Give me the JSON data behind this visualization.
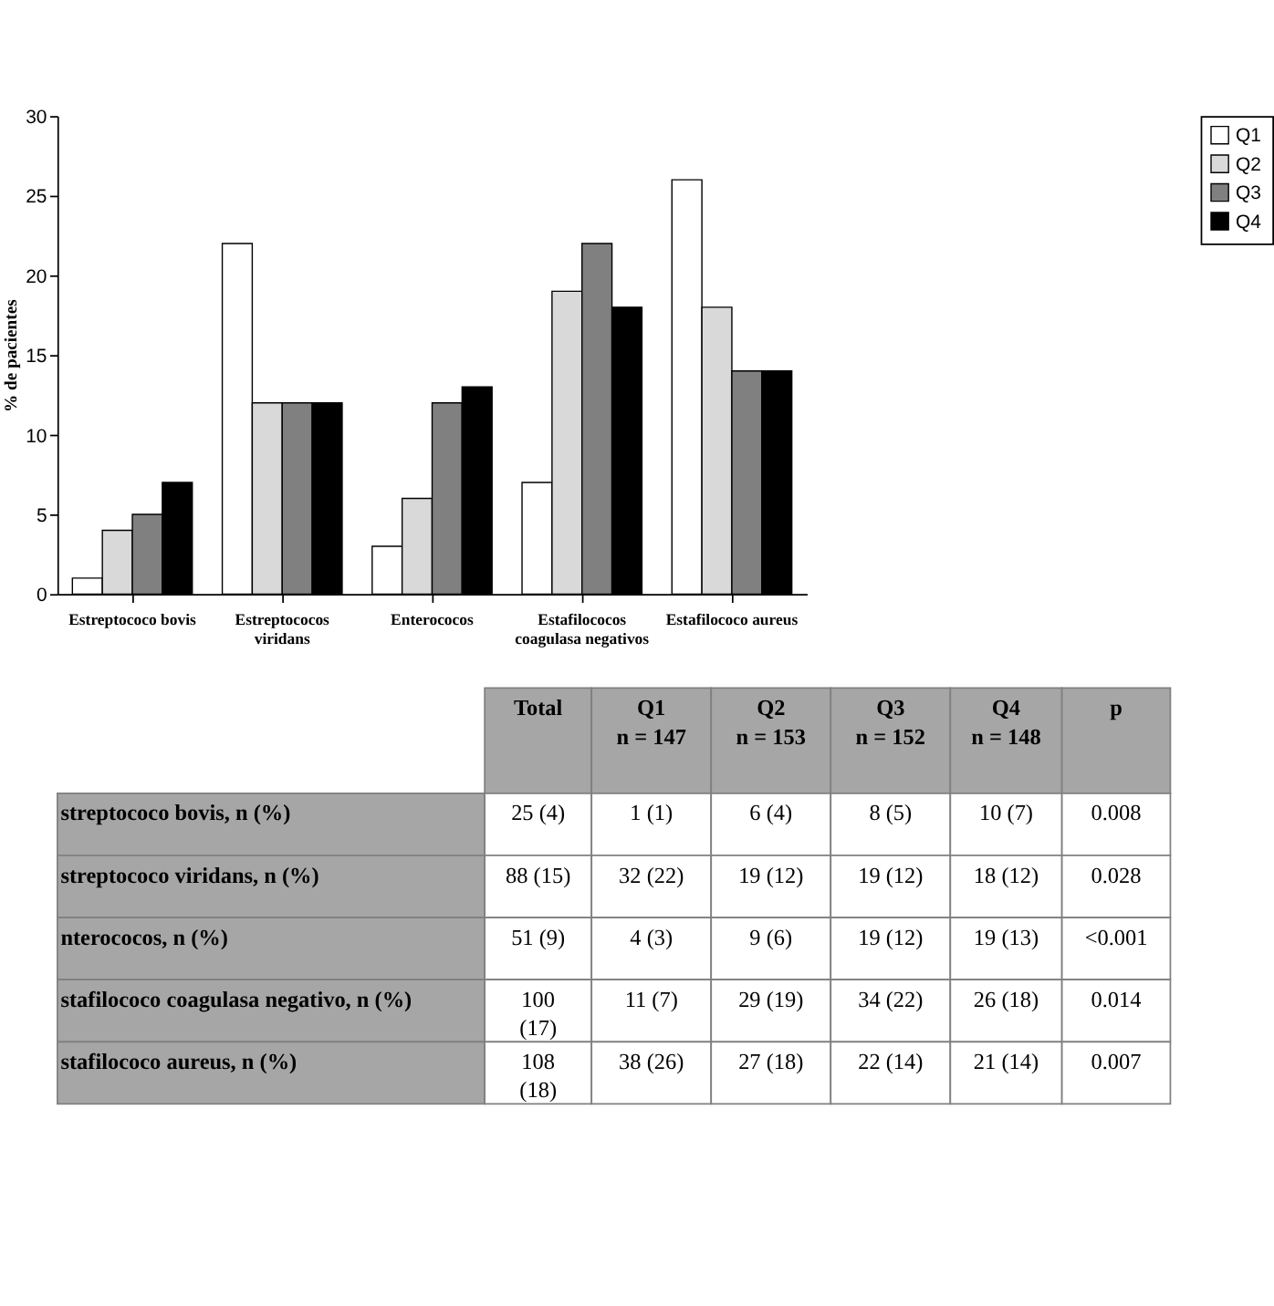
{
  "chart_data": {
    "type": "bar",
    "ylabel": "% de pacientes",
    "categories": [
      "Estreptococo bovis",
      "Estreptococos viridans",
      "Enterococos",
      "Estafilococos coagulasa negativos",
      "Estafilococo aureus"
    ],
    "series": [
      {
        "name": "Q1",
        "color": "#ffffff",
        "values": [
          1,
          22,
          3,
          7,
          26
        ]
      },
      {
        "name": "Q2",
        "color": "#d9d9d9",
        "values": [
          4,
          12,
          6,
          19,
          18
        ]
      },
      {
        "name": "Q3",
        "color": "#808080",
        "values": [
          5,
          12,
          12,
          22,
          14
        ]
      },
      {
        "name": "Q4",
        "color": "#000000",
        "values": [
          7,
          12,
          13,
          18,
          14
        ]
      }
    ],
    "ylim": [
      0,
      30
    ],
    "yticks": [
      0,
      5,
      10,
      15,
      20,
      25,
      30
    ],
    "grid": false,
    "legend": "right",
    "annotations": [
      "Total",
      "Q1\nn = 147",
      "Q2\nn = 153",
      "Q3\nn = 152",
      "Q4\nn = 148",
      "p",
      "streptococo bovis, n (%)",
      "25 (4)",
      "1 (1)",
      "6 (4)",
      "8 (5)",
      "10 (7)",
      "0.008",
      "streptococo viridans, n (%)",
      "88 (15)",
      "32 (22)",
      "19 (12)",
      "19 (12)",
      "18 (12)",
      "0.028",
      "nterococos, n (%)",
      "51 (9)",
      "4 (3)",
      "9 (6)",
      "19 (12)",
      "19 (13)",
      "<0.001",
      "stafilococo coagulasa negativo, n (%)",
      "100\n(17)",
      "11 (7)",
      "29 (19)",
      "34 (22)",
      "26 (18)",
      "0.014",
      "stafilococo aureus, n (%)",
      "108\n(18)",
      "38 (26)",
      "27 (18)",
      "22 (14)",
      "21 (14)",
      "0.007"
    ]
  }
}
